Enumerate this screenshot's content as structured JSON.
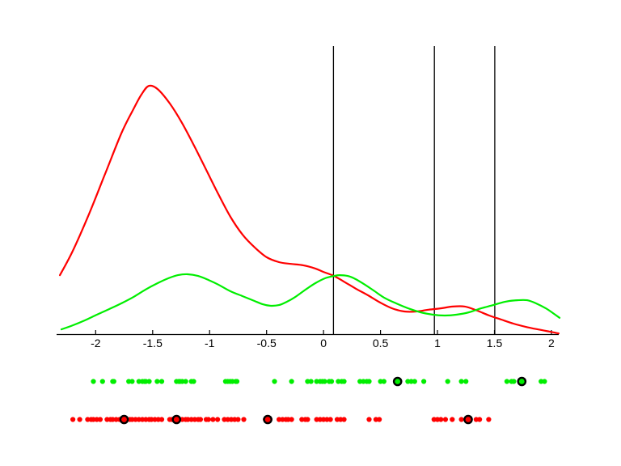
{
  "figure": {
    "background": "#ffffff",
    "title": ""
  },
  "chart_data": {
    "type": "line",
    "title": "",
    "xlabel": "",
    "ylabel": "",
    "xlim": [
      -2.34,
      2.07
    ],
    "ylim": [
      0,
      1
    ],
    "y_unit": "relative density (no y-axis ticks shown)",
    "grid": false,
    "legend": "none",
    "xticks": {
      "values": [
        -2,
        -1.5,
        -1,
        -0.5,
        0,
        0.5,
        1,
        1.5,
        2
      ],
      "labels": [
        "-2",
        "-1.5",
        "-1",
        "-0.5",
        "0",
        "0.5",
        "1",
        "1.5",
        "2"
      ]
    },
    "vertical_lines": {
      "color": "#000000",
      "x": [
        0.087,
        0.973,
        1.503
      ]
    },
    "series": [
      {
        "name": "red-density-curve",
        "color": "#ff0000",
        "x": [
          -2.314,
          -2.201,
          -2.059,
          -1.917,
          -1.775,
          -1.669,
          -1.598,
          -1.534,
          -1.456,
          -1.349,
          -1.243,
          -1.136,
          -1.03,
          -0.923,
          -0.817,
          -0.71,
          -0.604,
          -0.498,
          -0.391,
          -0.285,
          -0.178,
          -0.072,
          -0.001,
          0.092,
          0.177,
          0.283,
          0.39,
          0.496,
          0.602,
          0.709,
          0.815,
          0.922,
          1.028,
          1.135,
          1.241,
          1.348,
          1.454,
          1.561,
          1.667,
          1.773,
          1.88,
          1.986,
          2.064
        ],
        "y": [
          0.206,
          0.29,
          0.417,
          0.557,
          0.697,
          0.781,
          0.832,
          0.862,
          0.851,
          0.801,
          0.734,
          0.655,
          0.571,
          0.487,
          0.408,
          0.346,
          0.302,
          0.268,
          0.251,
          0.245,
          0.24,
          0.229,
          0.217,
          0.203,
          0.184,
          0.159,
          0.136,
          0.111,
          0.091,
          0.08,
          0.08,
          0.086,
          0.091,
          0.097,
          0.097,
          0.083,
          0.066,
          0.052,
          0.038,
          0.027,
          0.018,
          0.01,
          0.004
        ]
      },
      {
        "name": "green-density-curve",
        "color": "#00ee00",
        "x": [
          -2.3,
          -2.201,
          -2.095,
          -1.988,
          -1.882,
          -1.775,
          -1.669,
          -1.562,
          -1.456,
          -1.363,
          -1.278,
          -1.193,
          -1.101,
          -1.009,
          -0.923,
          -0.817,
          -0.71,
          -0.604,
          -0.533,
          -0.469,
          -0.391,
          -0.32,
          -0.249,
          -0.157,
          -0.072,
          0.013,
          0.092,
          0.141,
          0.212,
          0.283,
          0.354,
          0.439,
          0.532,
          0.638,
          0.744,
          0.851,
          0.957,
          1.064,
          1.17,
          1.277,
          1.383,
          1.49,
          1.596,
          1.702,
          1.788,
          1.866,
          1.951,
          2.015,
          2.072
        ],
        "y": [
          0.018,
          0.032,
          0.049,
          0.069,
          0.088,
          0.108,
          0.13,
          0.156,
          0.178,
          0.195,
          0.206,
          0.209,
          0.203,
          0.189,
          0.173,
          0.15,
          0.133,
          0.116,
          0.105,
          0.1,
          0.102,
          0.114,
          0.13,
          0.156,
          0.178,
          0.195,
          0.203,
          0.206,
          0.203,
          0.192,
          0.175,
          0.153,
          0.128,
          0.108,
          0.091,
          0.077,
          0.069,
          0.066,
          0.069,
          0.077,
          0.091,
          0.102,
          0.114,
          0.119,
          0.119,
          0.108,
          0.091,
          0.074,
          0.058
        ]
      }
    ],
    "rug_green": {
      "color": "#00ee00",
      "points": [
        -2.02,
        -1.94,
        -1.85,
        -1.84,
        -1.71,
        -1.68,
        -1.62,
        -1.59,
        -1.57,
        -1.56,
        -1.53,
        -1.46,
        -1.42,
        -1.29,
        -1.27,
        -1.26,
        -1.24,
        -1.21,
        -1.16,
        -1.14,
        -0.86,
        -0.84,
        -0.82,
        -0.8,
        -0.77,
        -0.76,
        -0.43,
        -0.28,
        -0.14,
        -0.11,
        -0.06,
        -0.03,
        -0.01,
        0.01,
        0.05,
        0.07,
        0.13,
        0.16,
        0.18,
        0.32,
        0.35,
        0.38,
        0.4,
        0.5,
        0.53,
        0.74,
        0.77,
        0.8,
        0.88,
        1.09,
        1.21,
        1.25,
        1.61,
        1.65,
        1.67,
        1.91,
        1.94
      ],
      "highlighted": [
        0.65,
        1.74
      ]
    },
    "rug_red": {
      "color": "#ff0000",
      "points": [
        -2.2,
        -2.14,
        -2.07,
        -2.04,
        -2.02,
        -1.99,
        -1.96,
        -1.9,
        -1.87,
        -1.85,
        -1.82,
        -1.79,
        -1.7,
        -1.68,
        -1.65,
        -1.62,
        -1.59,
        -1.56,
        -1.53,
        -1.51,
        -1.48,
        -1.45,
        -1.42,
        -1.35,
        -1.33,
        -1.24,
        -1.21,
        -1.19,
        -1.16,
        -1.13,
        -1.1,
        -1.08,
        -1.03,
        -1.01,
        -0.97,
        -0.93,
        -0.87,
        -0.84,
        -0.81,
        -0.78,
        -0.75,
        -0.7,
        -0.51,
        -0.47,
        -0.39,
        -0.36,
        -0.33,
        -0.31,
        -0.28,
        -0.19,
        -0.16,
        -0.14,
        -0.06,
        -0.03,
        0.0,
        0.03,
        0.06,
        0.12,
        0.15,
        0.18,
        0.4,
        0.46,
        0.49,
        0.97,
        1.0,
        1.03,
        1.07,
        1.13,
        1.21,
        1.34,
        1.37,
        1.45
      ],
      "highlighted": [
        -1.75,
        -1.29,
        -0.49,
        1.27
      ]
    }
  }
}
